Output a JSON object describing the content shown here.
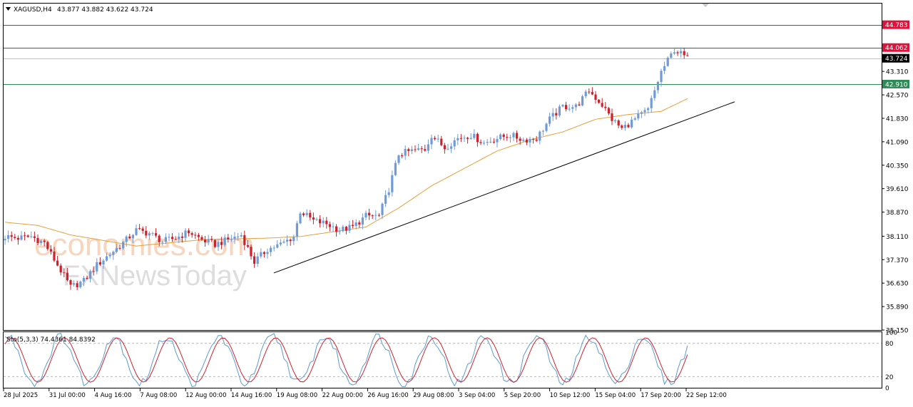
{
  "chart_data": {
    "type": "candlestick",
    "symbol_header": "XAGUSD,H4",
    "ohlc_header": "43.877 43.882 43.622 43.724",
    "y_axis_ticks": [
      "44.783",
      "44.062",
      "43.724",
      "43.310",
      "42.910",
      "42.570",
      "41.830",
      "41.090",
      "40.350",
      "39.610",
      "38.870",
      "38.110",
      "37.370",
      "36.630",
      "35.890",
      "35.150"
    ],
    "ylim": [
      35.15,
      45.45
    ],
    "x_axis_labels": [
      "28 Jul 2025",
      "31 Jul 00:00",
      "4 Aug 16:00",
      "7 Aug 08:00",
      "12 Aug 00:00",
      "14 Aug 16:00",
      "19 Aug 08:00",
      "22 Aug 00:00",
      "26 Aug 16:00",
      "29 Aug 08:00",
      "3 Sep 04:00",
      "5 Sep 20:00",
      "10 Sep 12:00",
      "15 Sep 04:00",
      "17 Sep 20:00",
      "22 Sep 12:00"
    ],
    "horizontal_levels": [
      {
        "value": 44.783,
        "label": "44.783",
        "color": "#dc143c"
      },
      {
        "value": 44.062,
        "label": "44.062",
        "color": "#dc143c"
      },
      {
        "value": 43.724,
        "label": "43.724",
        "color": "#000000"
      },
      {
        "value": 42.91,
        "label": "42.910",
        "color": "#2e8b57"
      }
    ],
    "trendline": {
      "from": {
        "index": 0.0,
        "price": 36.95
      },
      "to": {
        "index": 1.0,
        "price": 42.35
      },
      "color": "#000000"
    },
    "moving_average_color": "#e8a13a",
    "bull_color": "#6f9bd8",
    "bear_color": "#d0202c",
    "anchors": [
      [
        0,
        38.1
      ],
      [
        4,
        38.05
      ],
      [
        8,
        38.1
      ],
      [
        12,
        37.9
      ],
      [
        16,
        37.2
      ],
      [
        20,
        36.5
      ],
      [
        24,
        36.7
      ],
      [
        28,
        37.2
      ],
      [
        32,
        37.55
      ],
      [
        36,
        37.9
      ],
      [
        40,
        38.3
      ],
      [
        44,
        38.2
      ],
      [
        48,
        37.95
      ],
      [
        52,
        38.05
      ],
      [
        56,
        38.25
      ],
      [
        60,
        38.0
      ],
      [
        64,
        37.85
      ],
      [
        68,
        38.0
      ],
      [
        72,
        38.15
      ],
      [
        76,
        37.3
      ],
      [
        80,
        37.7
      ],
      [
        84,
        37.85
      ],
      [
        88,
        38.1
      ],
      [
        90,
        38.9
      ],
      [
        94,
        38.6
      ],
      [
        98,
        38.5
      ],
      [
        102,
        38.3
      ],
      [
        106,
        38.4
      ],
      [
        110,
        38.75
      ],
      [
        114,
        38.75
      ],
      [
        117,
        39.6
      ],
      [
        120,
        40.7
      ],
      [
        124,
        40.8
      ],
      [
        128,
        40.85
      ],
      [
        130,
        41.3
      ],
      [
        134,
        40.9
      ],
      [
        138,
        41.2
      ],
      [
        142,
        41.3
      ],
      [
        146,
        41.05
      ],
      [
        150,
        41.2
      ],
      [
        154,
        41.3
      ],
      [
        158,
        41.15
      ],
      [
        162,
        41.2
      ],
      [
        166,
        41.8
      ],
      [
        170,
        42.2
      ],
      [
        174,
        42.2
      ],
      [
        178,
        42.7
      ],
      [
        182,
        42.25
      ],
      [
        185,
        41.8
      ],
      [
        188,
        41.5
      ],
      [
        192,
        41.8
      ],
      [
        196,
        42.1
      ],
      [
        200,
        43.3
      ],
      [
        204,
        44.0
      ],
      [
        208,
        43.72
      ]
    ],
    "ma_anchors": [
      [
        0,
        38.55
      ],
      [
        10,
        38.45
      ],
      [
        20,
        38.15
      ],
      [
        40,
        37.8
      ],
      [
        60,
        38.0
      ],
      [
        80,
        38.05
      ],
      [
        90,
        38.1
      ],
      [
        100,
        38.25
      ],
      [
        110,
        38.4
      ],
      [
        120,
        39.0
      ],
      [
        130,
        39.7
      ],
      [
        140,
        40.25
      ],
      [
        150,
        40.8
      ],
      [
        160,
        41.15
      ],
      [
        170,
        41.4
      ],
      [
        180,
        41.8
      ],
      [
        190,
        41.95
      ],
      [
        200,
        42.05
      ],
      [
        208,
        42.45
      ]
    ],
    "stochastic": {
      "label": "Sto(5,3,3) 74.4361 84.8392",
      "ticks": [
        "100",
        "80",
        "20",
        "0"
      ],
      "levels": [
        80,
        20
      ],
      "main_color": "#5b9bd5",
      "signal_color": "#d0202c"
    }
  },
  "watermark": {
    "line1": "economies.com",
    "line2": "FXNewsToday"
  }
}
